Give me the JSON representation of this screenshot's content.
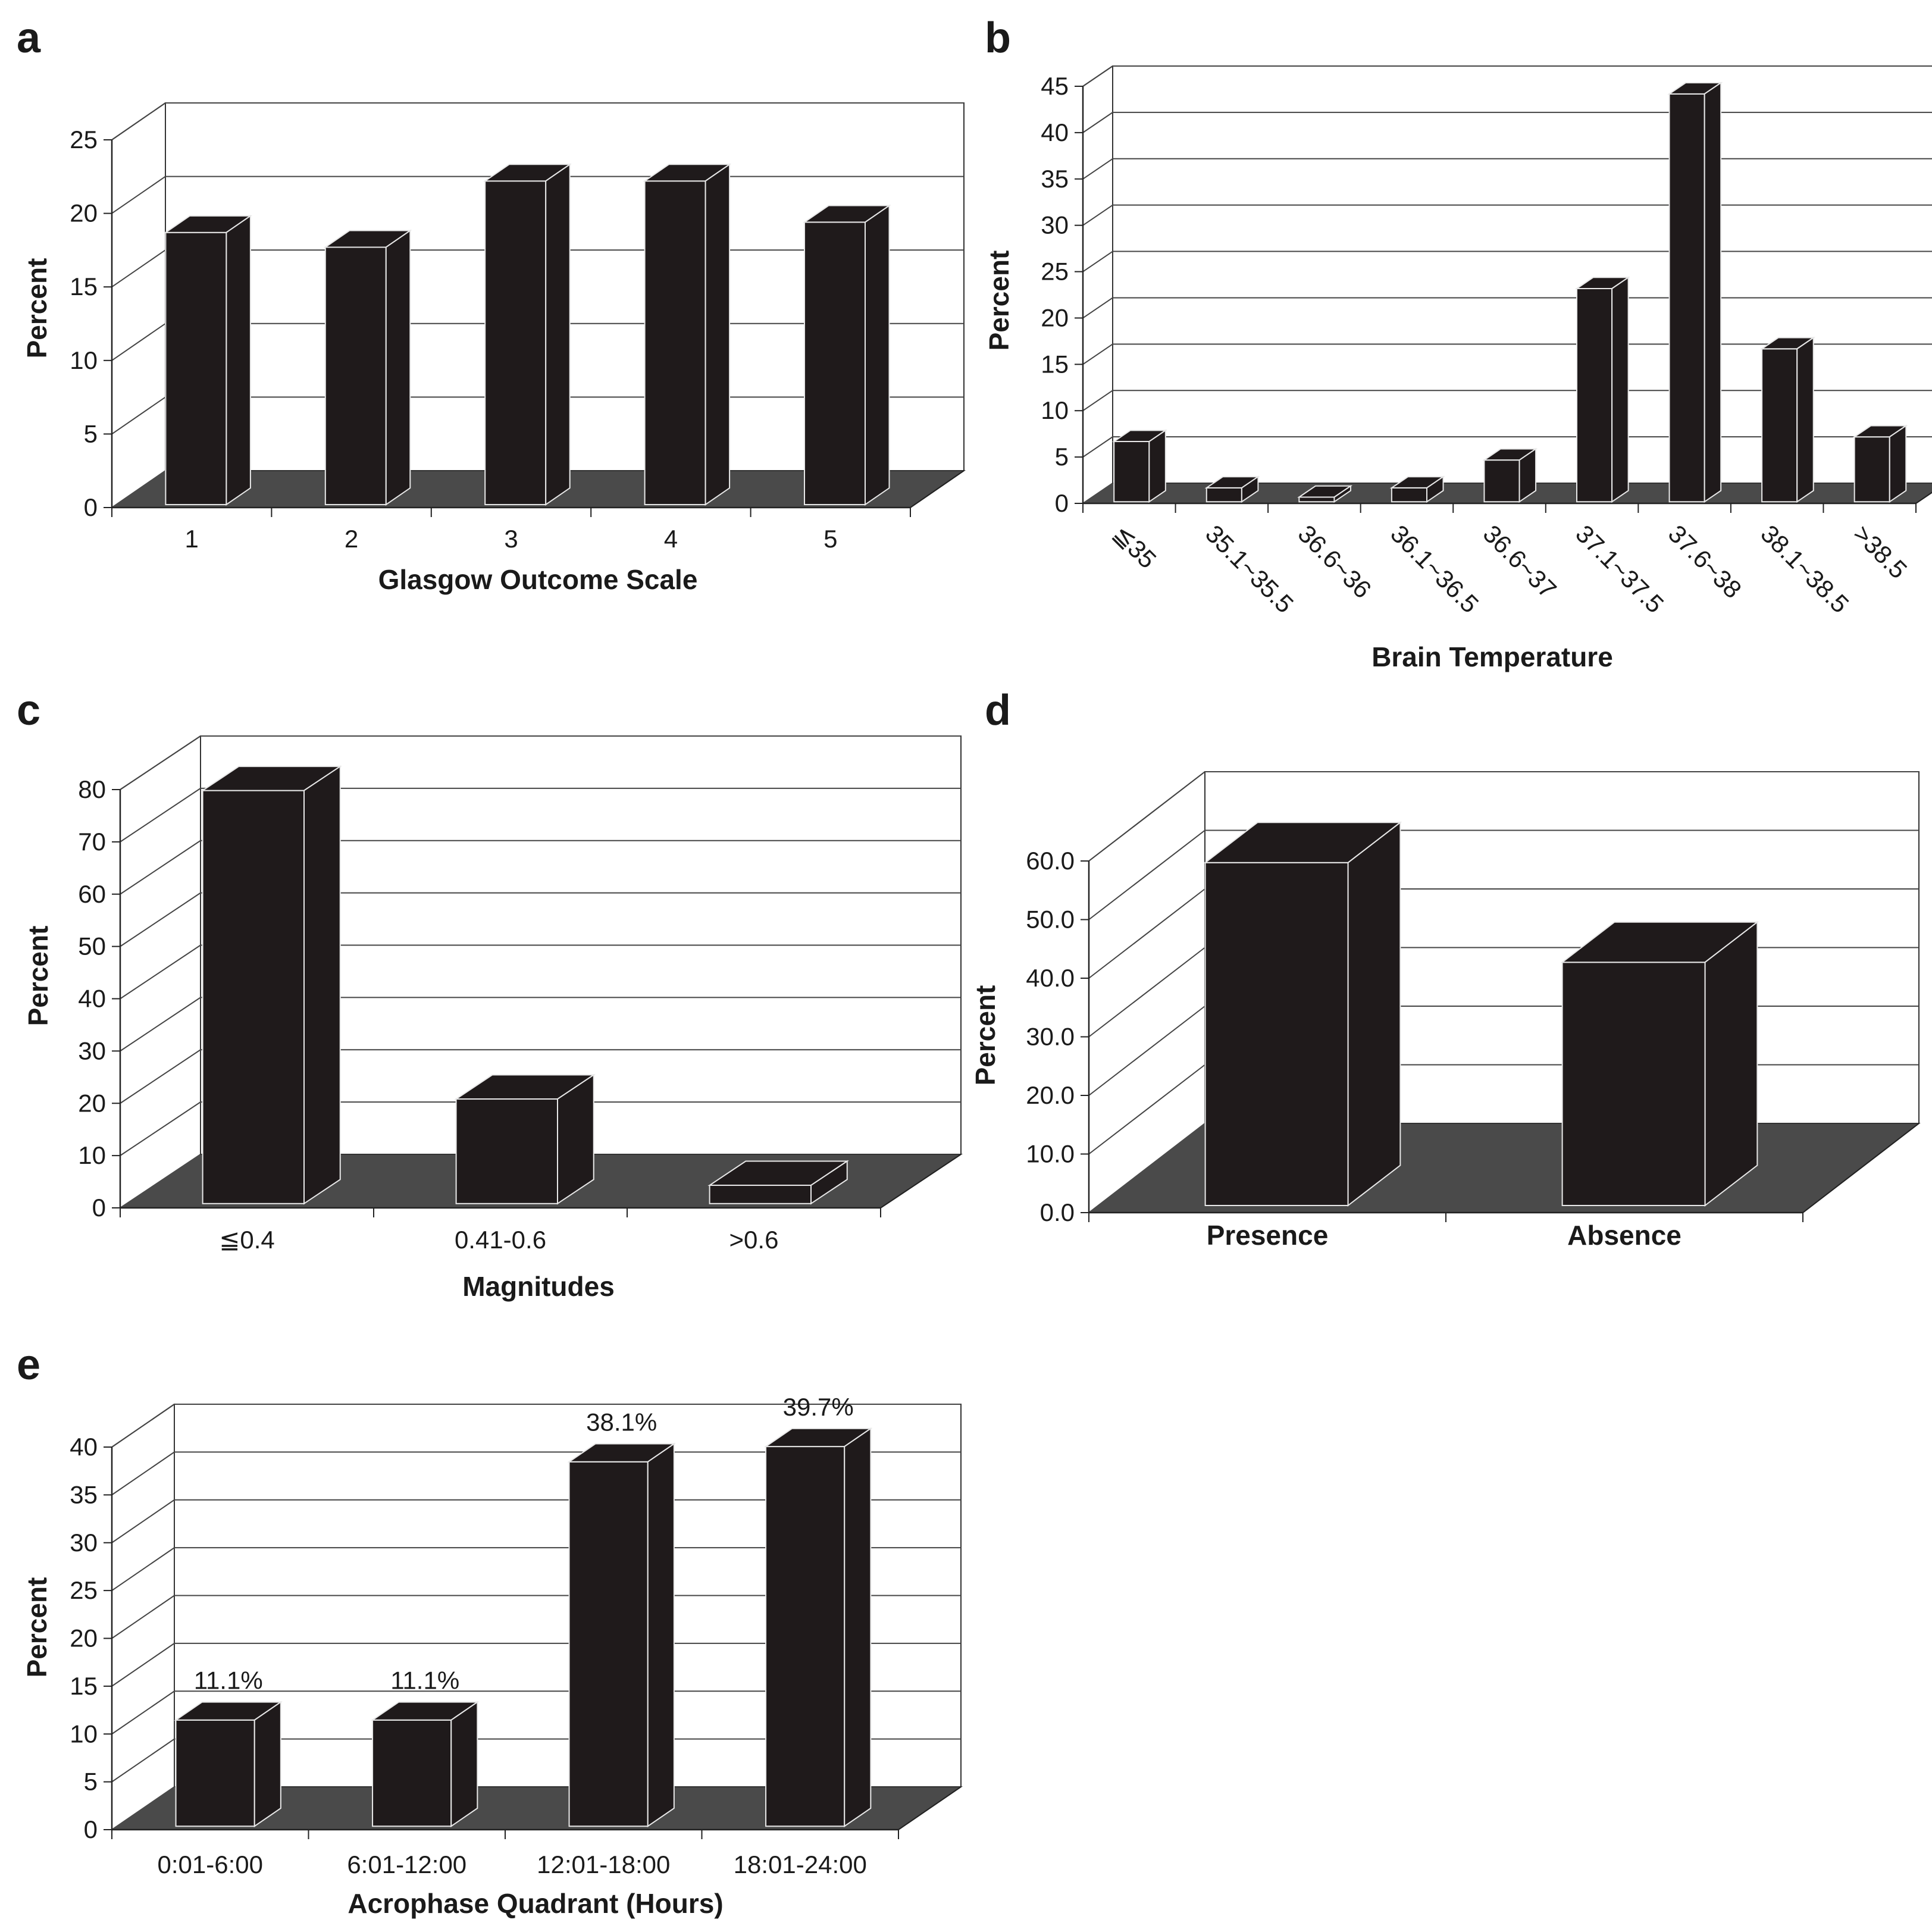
{
  "chart_data": [
    {
      "panel": "a",
      "type": "bar",
      "categories": [
        "1",
        "2",
        "3",
        "4",
        "5"
      ],
      "values": [
        18.5,
        17.5,
        22,
        22,
        19.2
      ],
      "title": "",
      "xlabel": "Glasgow Outcome Scale",
      "ylabel": "Percent",
      "ylim": [
        0,
        25
      ],
      "yticks": [
        "0",
        "5",
        "10",
        "15",
        "20",
        "25"
      ],
      "grid": true
    },
    {
      "panel": "b",
      "type": "bar",
      "categories": [
        "≦35",
        "35.1~35.5",
        "36.6~36",
        "36.1~36.5",
        "36.6~37",
        "37.1~37.5",
        "37.6~38",
        "38.1~38.5",
        ">38.5"
      ],
      "values": [
        6.5,
        1.5,
        0.5,
        1.5,
        4.5,
        23,
        44,
        16.5,
        7
      ],
      "title": "",
      "xlabel": "Brain Temperature",
      "ylabel": "Percent",
      "ylim": [
        0,
        45
      ],
      "yticks": [
        "0",
        "5",
        "10",
        "15",
        "20",
        "25",
        "30",
        "35",
        "40",
        "45"
      ],
      "grid": true
    },
    {
      "panel": "c",
      "type": "bar",
      "categories": [
        "≦0.4",
        "0.41-0.6",
        ">0.6"
      ],
      "values": [
        79,
        20,
        3.5
      ],
      "title": "",
      "xlabel": "Magnitudes",
      "ylabel": "Percent",
      "ylim": [
        0,
        80
      ],
      "yticks": [
        "0",
        "10",
        "20",
        "30",
        "40",
        "50",
        "60",
        "70",
        "80"
      ],
      "grid": true
    },
    {
      "panel": "d",
      "type": "bar",
      "categories": [
        "Presence",
        "Absence"
      ],
      "values": [
        58.5,
        41.5
      ],
      "title": "",
      "xlabel": "",
      "ylabel": "Percent",
      "ylim": [
        0,
        60
      ],
      "yticks": [
        "0.0",
        "10.0",
        "20.0",
        "30.0",
        "40.0",
        "50.0",
        "60.0"
      ],
      "grid": true
    },
    {
      "panel": "e",
      "type": "bar",
      "categories": [
        "0:01-6:00",
        "6:01-12:00",
        "12:01-18:00",
        "18:01-24:00"
      ],
      "values": [
        11.1,
        11.1,
        38.1,
        39.7
      ],
      "data_labels": [
        "11.1%",
        "11.1%",
        "38.1%",
        "39.7%"
      ],
      "title": "",
      "xlabel": "Acrophase Quadrant (Hours)",
      "ylabel": "Percent",
      "ylim": [
        0,
        40
      ],
      "yticks": [
        "0",
        "5",
        "10",
        "15",
        "20",
        "25",
        "30",
        "35",
        "40"
      ],
      "grid": true
    }
  ],
  "panel_letters": [
    "a",
    "b",
    "c",
    "d",
    "e"
  ]
}
